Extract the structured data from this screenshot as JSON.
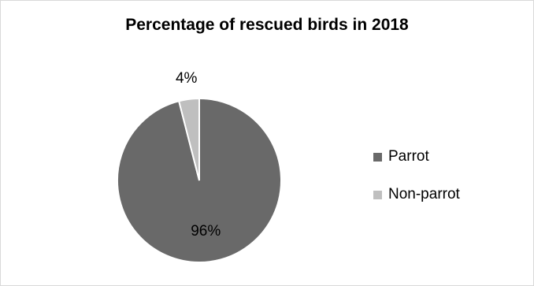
{
  "chart_data": {
    "type": "pie",
    "title": "Percentage of rescued birds in 2018",
    "categories": [
      "Parrot",
      "Non-parrot"
    ],
    "values": [
      96,
      4
    ],
    "data_labels": [
      "96%",
      "4%"
    ],
    "colors": [
      "#696969",
      "#bfbfbf"
    ],
    "legend_position": "right",
    "start_angle_degrees": 0,
    "direction": "clockwise"
  }
}
